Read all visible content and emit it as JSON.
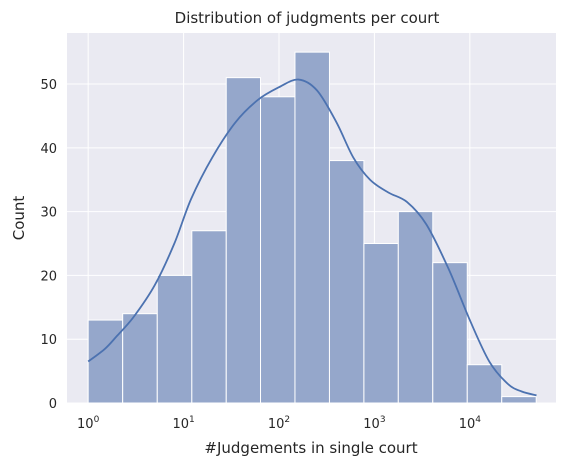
{
  "chart_data": {
    "type": "bar",
    "title": "Distribution of judgments per court",
    "xlabel": "#Judgements in single court",
    "ylabel": "Count",
    "x_scale": "log",
    "xlim": [
      0.6,
      80000
    ],
    "ylim": [
      0,
      58
    ],
    "x_ticks": [
      {
        "value": 1,
        "base": "10",
        "exp": "0"
      },
      {
        "value": 10,
        "base": "10",
        "exp": "1"
      },
      {
        "value": 100,
        "base": "10",
        "exp": "2"
      },
      {
        "value": 1000,
        "base": "10",
        "exp": "3"
      },
      {
        "value": 10000,
        "base": "10",
        "exp": "4"
      }
    ],
    "y_ticks": [
      0,
      10,
      20,
      30,
      40,
      50
    ],
    "grid": true,
    "bar_color": "#95a7cb",
    "kde_color": "#4c72b0",
    "background": "#eaeaf2",
    "bins": [
      {
        "x0": 1,
        "x1": 2.3,
        "count": 13
      },
      {
        "x0": 2.3,
        "x1": 5.3,
        "count": 14
      },
      {
        "x0": 5.3,
        "x1": 12.2,
        "count": 20
      },
      {
        "x0": 12.2,
        "x1": 28,
        "count": 27
      },
      {
        "x0": 28,
        "x1": 64,
        "count": 51
      },
      {
        "x0": 64,
        "x1": 147,
        "count": 48
      },
      {
        "x0": 147,
        "x1": 338,
        "count": 55
      },
      {
        "x0": 338,
        "x1": 776,
        "count": 38
      },
      {
        "x0": 776,
        "x1": 1780,
        "count": 25
      },
      {
        "x0": 1780,
        "x1": 4090,
        "count": 30
      },
      {
        "x0": 4090,
        "x1": 9400,
        "count": 22
      },
      {
        "x0": 9400,
        "x1": 21600,
        "count": 6
      },
      {
        "x0": 21600,
        "x1": 49600,
        "count": 1
      }
    ],
    "kde": [
      {
        "x": 1,
        "y": 6.5
      },
      {
        "x": 1.5,
        "y": 8.5
      },
      {
        "x": 2,
        "y": 10.5
      },
      {
        "x": 3,
        "y": 13.5
      },
      {
        "x": 5,
        "y": 18.5
      },
      {
        "x": 8,
        "y": 25
      },
      {
        "x": 12,
        "y": 32
      },
      {
        "x": 20,
        "y": 38.5
      },
      {
        "x": 35,
        "y": 44
      },
      {
        "x": 60,
        "y": 47.5
      },
      {
        "x": 100,
        "y": 49.5
      },
      {
        "x": 160,
        "y": 50.7
      },
      {
        "x": 250,
        "y": 49
      },
      {
        "x": 400,
        "y": 44
      },
      {
        "x": 600,
        "y": 38.5
      },
      {
        "x": 900,
        "y": 35
      },
      {
        "x": 1400,
        "y": 33
      },
      {
        "x": 2200,
        "y": 31.5
      },
      {
        "x": 3500,
        "y": 28
      },
      {
        "x": 6000,
        "y": 21
      },
      {
        "x": 10000,
        "y": 13
      },
      {
        "x": 16000,
        "y": 6.5
      },
      {
        "x": 25000,
        "y": 3
      },
      {
        "x": 35000,
        "y": 1.8
      },
      {
        "x": 50000,
        "y": 1.2
      }
    ]
  }
}
